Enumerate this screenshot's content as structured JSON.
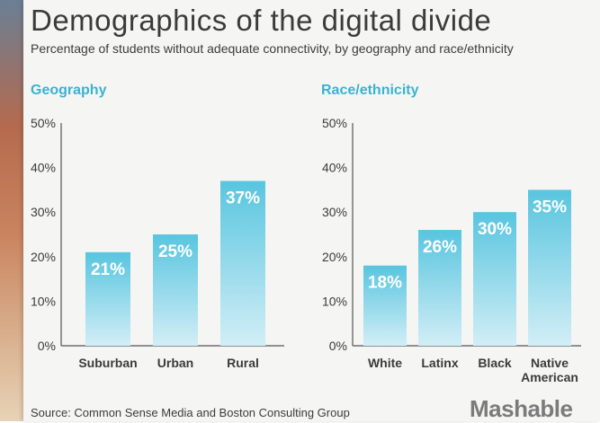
{
  "title": "Demographics of the digital divide",
  "subtitle": "Percentage of students without adequate connectivity, by geography and race/ethnicity",
  "source": "Source: Common Sense Media and Boston Consulting Group",
  "brand": "Mashable",
  "colors": {
    "bar_top": "#58c5df",
    "bar_bottom": "#d2eef6",
    "title_accent": "#3ab3d1",
    "text": "#3b3b3b",
    "bar_label": "#ffffff"
  },
  "chart_data": [
    {
      "type": "bar",
      "title": "Geography",
      "xlabel": "",
      "ylabel": "",
      "categories": [
        "Suburban",
        "Urban",
        "Rural"
      ],
      "values": [
        21,
        25,
        37
      ],
      "labels": [
        "21%",
        "25%",
        "37%"
      ],
      "ylim": [
        0,
        50
      ],
      "yticks": [
        "0%",
        "10%",
        "20%",
        "30%",
        "40%",
        "50%"
      ],
      "grid": false,
      "legend": "none"
    },
    {
      "type": "bar",
      "title": "Race/ethnicity",
      "xlabel": "",
      "ylabel": "",
      "categories": [
        "White",
        "Latinx",
        "Black",
        "Native\nAmerican"
      ],
      "values": [
        18,
        26,
        30,
        35
      ],
      "labels": [
        "18%",
        "26%",
        "30%",
        "35%"
      ],
      "ylim": [
        0,
        50
      ],
      "yticks": [
        "0%",
        "10%",
        "20%",
        "30%",
        "40%",
        "50%"
      ],
      "grid": false,
      "legend": "none"
    }
  ]
}
